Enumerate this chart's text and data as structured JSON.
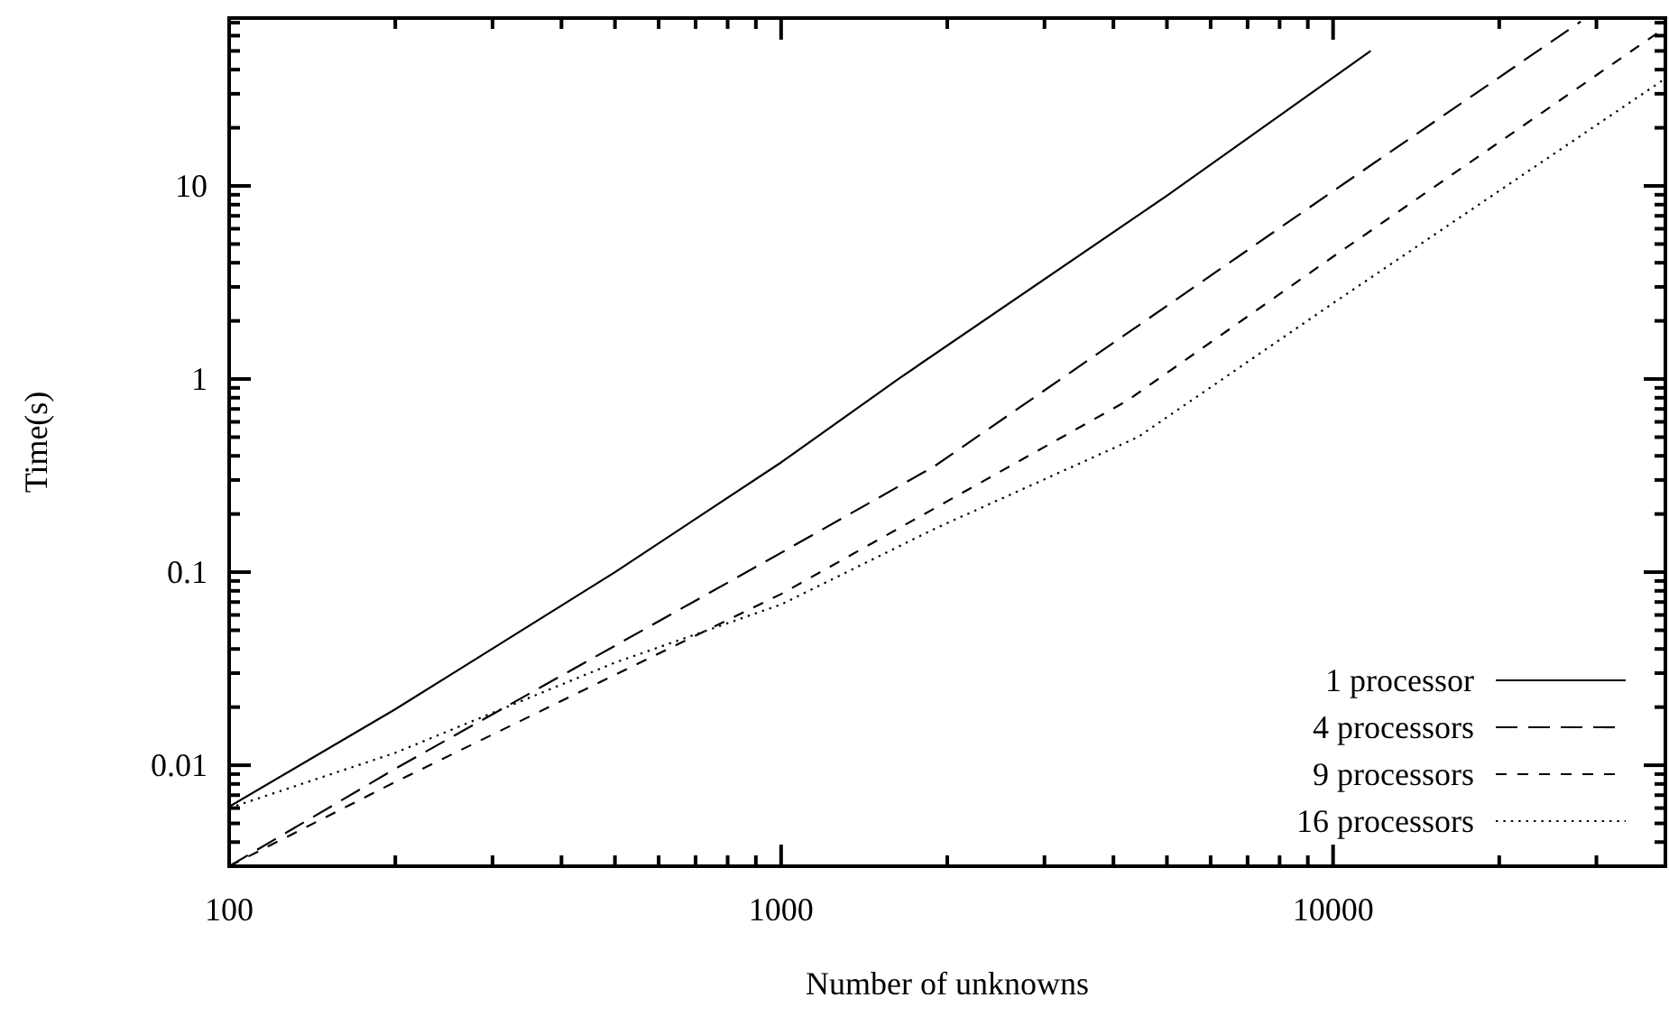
{
  "chart_data": {
    "type": "line",
    "xlabel": "Number of unknowns",
    "ylabel": "Time(s)",
    "log": "xy",
    "grid": false,
    "legend": "bottom right",
    "marker": "none",
    "xlim": [
      100,
      40000
    ],
    "ylim": [
      0.003,
      74
    ],
    "xticks": [
      100,
      {
        "value": 200,
        "label": null
      },
      {
        "value": 300,
        "label": null
      },
      {
        "value": 400,
        "label": null
      },
      {
        "value": 500,
        "label": null
      },
      {
        "value": 600,
        "label": null
      },
      {
        "value": 700,
        "label": null
      },
      {
        "value": 800,
        "label": null
      },
      {
        "value": 900,
        "label": null
      },
      1000,
      {
        "value": 2000,
        "label": null
      },
      {
        "value": 3000,
        "label": null
      },
      {
        "value": 4000,
        "label": null
      },
      {
        "value": 5000,
        "label": null
      },
      {
        "value": 6000,
        "label": null
      },
      {
        "value": 7000,
        "label": null
      },
      {
        "value": 8000,
        "label": null
      },
      {
        "value": 9000,
        "label": null
      },
      10000,
      {
        "value": 20000,
        "label": null
      },
      {
        "value": 30000,
        "label": null
      }
    ],
    "yticks": [
      {
        "value": 0.004,
        "label": null
      },
      {
        "value": 0.005,
        "label": null
      },
      {
        "value": 0.006,
        "label": null
      },
      {
        "value": 0.007,
        "label": null
      },
      {
        "value": 0.008,
        "label": null
      },
      {
        "value": 0.009,
        "label": null
      },
      0.01,
      {
        "value": 0.02,
        "label": null
      },
      {
        "value": 0.03,
        "label": null
      },
      {
        "value": 0.04,
        "label": null
      },
      {
        "value": 0.05,
        "label": null
      },
      {
        "value": 0.06,
        "label": null
      },
      {
        "value": 0.07,
        "label": null
      },
      {
        "value": 0.08,
        "label": null
      },
      {
        "value": 0.09,
        "label": null
      },
      0.1,
      {
        "value": 0.2,
        "label": null
      },
      {
        "value": 0.3,
        "label": null
      },
      {
        "value": 0.4,
        "label": null
      },
      {
        "value": 0.5,
        "label": null
      },
      {
        "value": 0.6,
        "label": null
      },
      {
        "value": 0.7,
        "label": null
      },
      {
        "value": 0.8,
        "label": null
      },
      {
        "value": 0.9,
        "label": null
      },
      1,
      {
        "value": 2,
        "label": null
      },
      {
        "value": 3,
        "label": null
      },
      {
        "value": 4,
        "label": null
      },
      {
        "value": 5,
        "label": null
      },
      {
        "value": 6,
        "label": null
      },
      {
        "value": 7,
        "label": null
      },
      {
        "value": 8,
        "label": null
      },
      {
        "value": 9,
        "label": null
      },
      10,
      {
        "value": 20,
        "label": null
      },
      {
        "value": 30,
        "label": null
      },
      {
        "value": 40,
        "label": null
      },
      {
        "value": 50,
        "label": null
      },
      {
        "value": 60,
        "label": null
      },
      {
        "value": 70,
        "label": null
      }
    ],
    "series": [
      {
        "name": "1 processor",
        "color": "#000000",
        "line_style": "solid",
        "x": [
          100,
          200,
          500,
          1000,
          1630,
          5000,
          11700
        ],
        "values": [
          0.0061,
          0.0195,
          0.1,
          0.37,
          1.0,
          8.9,
          50
        ]
      },
      {
        "name": "4 processors",
        "color": "#000000",
        "line_style": "dashed",
        "x": [
          100,
          200,
          1000,
          1900,
          4000,
          10000,
          28100
        ],
        "values": [
          0.003,
          0.0096,
          0.126,
          0.355,
          1.54,
          9.4,
          71
        ]
      },
      {
        "name": "9 processors",
        "color": "#000000",
        "line_style": "dashed",
        "x": [
          100,
          200,
          1000,
          4230,
          10000,
          40000
        ],
        "values": [
          0.003,
          0.0082,
          0.077,
          0.77,
          4.3,
          66
        ]
      },
      {
        "name": "16 processors",
        "color": "#000000",
        "line_style": "dotted",
        "x": [
          100,
          200,
          500,
          1000,
          1900,
          4430,
          10000,
          40000
        ],
        "values": [
          0.006,
          0.0116,
          0.034,
          0.068,
          0.168,
          0.5,
          2.47,
          36
        ]
      }
    ]
  }
}
